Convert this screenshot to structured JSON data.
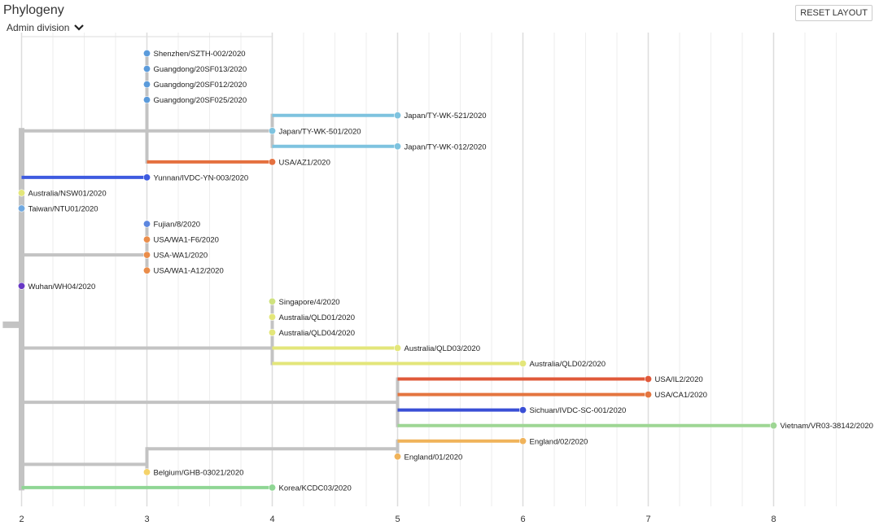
{
  "header": {
    "title": "Phylogeny",
    "select_value": "Admin division",
    "reset_label": "RESET LAYOUT"
  },
  "colors": {
    "branch_default": "#c3c3c3",
    "grid_major": "#dddddd",
    "grid_minor": "#eeeeee"
  },
  "icons": [
    "chevron-down-icon"
  ],
  "chart_data": {
    "type": "phylogenetic-tree",
    "x_axis": {
      "ticks": [
        2,
        3,
        4,
        5,
        6,
        7,
        8
      ],
      "range": [
        1.85,
        8.6
      ],
      "minor_step": 0.25
    },
    "grid": true,
    "tips": [
      {
        "name": "Shenzhen/SZTH-002/2020",
        "x": 3,
        "row": 0,
        "color": "#5b9bdb"
      },
      {
        "name": "Guangdong/20SF013/2020",
        "x": 3,
        "row": 1,
        "color": "#5b9bdb"
      },
      {
        "name": "Guangdong/20SF012/2020",
        "x": 3,
        "row": 2,
        "color": "#5b9bdb"
      },
      {
        "name": "Guangdong/20SF025/2020",
        "x": 3,
        "row": 3,
        "color": "#5b9bdb"
      },
      {
        "name": "Japan/TY-WK-521/2020",
        "x": 5,
        "row": 4,
        "color": "#7ec3df"
      },
      {
        "name": "Japan/TY-WK-501/2020",
        "x": 4,
        "row": 5,
        "color": "#7ec3df"
      },
      {
        "name": "Japan/TY-WK-012/2020",
        "x": 5,
        "row": 6,
        "color": "#7ec3df"
      },
      {
        "name": "USA/AZ1/2020",
        "x": 4,
        "row": 7,
        "color": "#e4703f"
      },
      {
        "name": "Yunnan/IVDC-YN-003/2020",
        "x": 3,
        "row": 8,
        "color": "#3e5be0"
      },
      {
        "name": "Australia/NSW01/2020",
        "x": 2,
        "row": 9,
        "color": "#e3e67a"
      },
      {
        "name": "Taiwan/NTU01/2020",
        "x": 2,
        "row": 10,
        "color": "#6fa8e0"
      },
      {
        "name": "Fujian/8/2020",
        "x": 3,
        "row": 11,
        "color": "#5d87df"
      },
      {
        "name": "USA/WA1-F6/2020",
        "x": 3,
        "row": 12,
        "color": "#ea8d4a"
      },
      {
        "name": "USA-WA1/2020",
        "x": 3,
        "row": 13,
        "color": "#ea8d4a"
      },
      {
        "name": "USA/WA1-A12/2020",
        "x": 3,
        "row": 14,
        "color": "#ea8d4a"
      },
      {
        "name": "Wuhan/WH04/2020",
        "x": 2,
        "row": 15,
        "color": "#6737c4"
      },
      {
        "name": "Singapore/4/2020",
        "x": 4,
        "row": 16,
        "color": "#cfe27e"
      },
      {
        "name": "Australia/QLD01/2020",
        "x": 4,
        "row": 17,
        "color": "#e3e67a"
      },
      {
        "name": "Australia/QLD04/2020",
        "x": 4,
        "row": 18,
        "color": "#e3e67a"
      },
      {
        "name": "Australia/QLD03/2020",
        "x": 5,
        "row": 19,
        "color": "#e3e67a"
      },
      {
        "name": "Australia/QLD02/2020",
        "x": 6,
        "row": 20,
        "color": "#e3e67a"
      },
      {
        "name": "USA/IL2/2020",
        "x": 7,
        "row": 21,
        "color": "#e0593a"
      },
      {
        "name": "USA/CA1/2020",
        "x": 7,
        "row": 22,
        "color": "#e4753f"
      },
      {
        "name": "Sichuan/IVDC-SC-001/2020",
        "x": 6,
        "row": 23,
        "color": "#3a4fd6"
      },
      {
        "name": "Vietnam/VR03-38142/2020",
        "x": 8,
        "row": 24,
        "color": "#9ed694"
      },
      {
        "name": "England/02/2020",
        "x": 6,
        "row": 25,
        "color": "#f0b35a"
      },
      {
        "name": "England/01/2020",
        "x": 5,
        "row": 26,
        "color": "#f0b35a"
      },
      {
        "name": "Belgium/GHB-03021/2020",
        "x": 3,
        "row": 27,
        "color": "#f4d26a"
      },
      {
        "name": "Korea/KCDC03/2020",
        "x": 4,
        "row": 28,
        "color": "#8fd694"
      }
    ],
    "internal_nodes": [
      {
        "id": "root",
        "x": 1.85,
        "row": 17.5
      },
      {
        "id": "n_main",
        "x": 2,
        "row_top": 5.0,
        "row_bottom": 28
      },
      {
        "id": "n_china",
        "x": 3,
        "row_top": 0,
        "row_bottom": 7
      },
      {
        "id": "n_japan",
        "x": 4,
        "row_top": 4,
        "row_bottom": 6
      },
      {
        "id": "n_wa",
        "x": 3,
        "row_top": 11,
        "row_bottom": 14
      },
      {
        "id": "n_qld",
        "x": 4,
        "row_top": 16,
        "row_bottom": 20
      },
      {
        "id": "n_usa",
        "x": 5,
        "row_top": 21,
        "row_bottom": 24
      },
      {
        "id": "n_eng",
        "x": 5,
        "row_top": 25,
        "row_bottom": 26
      },
      {
        "id": "n_eu",
        "x": 3,
        "row_top": 25.5,
        "row_bottom": 27
      }
    ],
    "edges": [
      {
        "from_x": 1.85,
        "to_x": 2,
        "row": 17.5,
        "color": "#c3c3c3",
        "kind": "root"
      },
      {
        "from_x": 2,
        "to_x": 3,
        "row": 5.0,
        "color": "#c3c3c3"
      },
      {
        "from_x": 3,
        "to_x": 4,
        "row": 5.0,
        "color": "#c3c3c3"
      },
      {
        "from_x": 4,
        "to_x": 5,
        "row": 4,
        "color": "#7ec3df"
      },
      {
        "from_x": 4,
        "to_x": 5,
        "row": 6,
        "color": "#7ec3df"
      },
      {
        "from_x": 3,
        "to_x": 4,
        "row": 7,
        "color": "#e4703f"
      },
      {
        "from_x": 2,
        "to_x": 3,
        "row": 8,
        "color": "#3e5be0"
      },
      {
        "from_x": 2,
        "to_x": 3,
        "row": 13,
        "color": "#c3c3c3"
      },
      {
        "from_x": 2,
        "to_x": 4,
        "row": 19,
        "color": "#c3c3c3"
      },
      {
        "from_x": 4,
        "to_x": 5,
        "row": 19,
        "color": "#e3e67a"
      },
      {
        "from_x": 4,
        "to_x": 6,
        "row": 20,
        "color": "#e3e67a"
      },
      {
        "from_x": 2,
        "to_x": 5,
        "row": 22.5,
        "color": "#c3c3c3"
      },
      {
        "from_x": 5,
        "to_x": 7,
        "row": 21,
        "color": "#e0593a"
      },
      {
        "from_x": 5,
        "to_x": 7,
        "row": 22,
        "color": "#e4753f"
      },
      {
        "from_x": 5,
        "to_x": 6,
        "row": 23,
        "color": "#3a4fd6"
      },
      {
        "from_x": 5,
        "to_x": 8,
        "row": 24,
        "color": "#9ed694"
      },
      {
        "from_x": 2,
        "to_x": 3,
        "row": 26.5,
        "color": "#c3c3c3"
      },
      {
        "from_x": 3,
        "to_x": 5,
        "row": 25.5,
        "color": "#c3c3c3"
      },
      {
        "from_x": 5,
        "to_x": 6,
        "row": 25,
        "color": "#f0b35a"
      },
      {
        "from_x": 2,
        "to_x": 4,
        "row": 28,
        "color": "#8fd694"
      }
    ]
  }
}
